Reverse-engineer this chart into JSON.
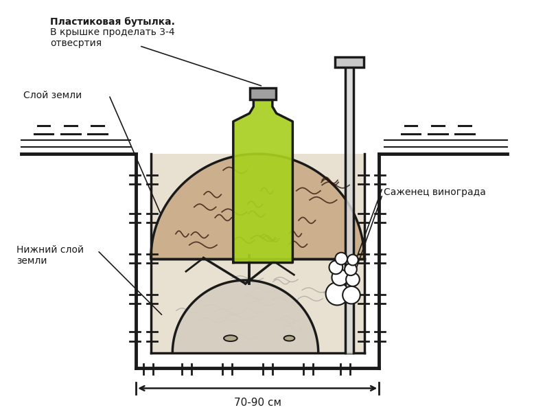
{
  "bg_color": "#ffffff",
  "soil_mound_color": "#c8a882",
  "lower_soil_color": "#e8e0d0",
  "bottle_color": "#a8d020",
  "bottle_cap_color": "#a0a0a0",
  "annotation_bottle_bold": "Пластиковая бутылка.",
  "annotation_bottle_rest": "В крышке проделать 3-4\nотвесртия",
  "annotation_soil": "Слой земли",
  "annotation_lower": "Нижний слой\nземли",
  "annotation_sapling": "Саженец винограда",
  "annotation_dim": "70-90 см",
  "line_color": "#1a1a1a",
  "text_color": "#1a1a1a"
}
